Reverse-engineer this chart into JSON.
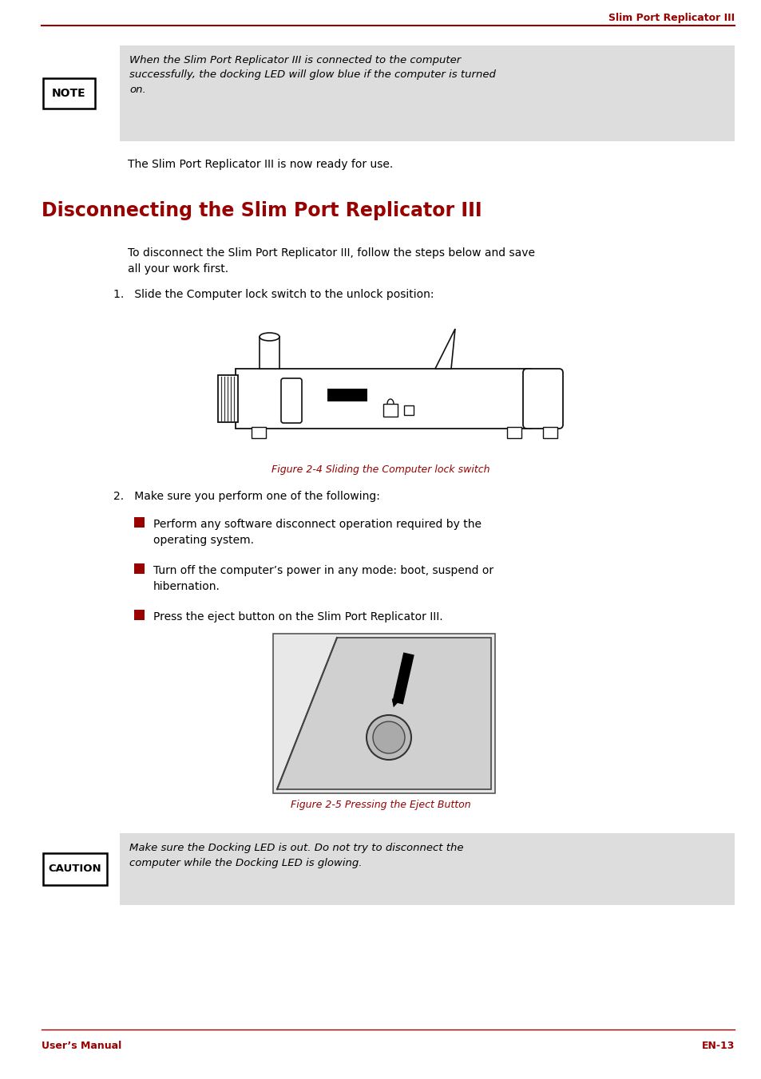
{
  "page_bg": "#ffffff",
  "header_text": "Slim Port Replicator III",
  "header_color": "#990000",
  "header_line_color": "#990000",
  "footer_left": "User’s Manual",
  "footer_right": "EN-13",
  "footer_color": "#990000",
  "footer_line_color": "#990000",
  "note_box_text": "NOTE",
  "note_bg": "#dddddd",
  "note_content": "When the Slim Port Replicator III is connected to the computer\nsuccessfully, the docking LED will glow blue if the computer is turned\non.",
  "plain_text_1": "The Slim Port Replicator III is now ready for use.",
  "section_title": "Disconnecting the Slim Port Replicator III",
  "section_title_color": "#990000",
  "intro_text": "To disconnect the Slim Port Replicator III, follow the steps below and save\nall your work first.",
  "step1_text": "1.   Slide the Computer lock switch to the unlock position:",
  "fig1_caption": "Figure 2-4 Sliding the Computer lock switch",
  "fig1_caption_color": "#990000",
  "step2_text": "2.   Make sure you perform one of the following:",
  "bullet1": "Perform any software disconnect operation required by the\noperating system.",
  "bullet2": "Turn off the computer’s power in any mode: boot, suspend or\nhibernation.",
  "bullet3": "Press the eject button on the Slim Port Replicator III.",
  "fig2_caption": "Figure 2-5 Pressing the Eject Button",
  "fig2_caption_color": "#990000",
  "caution_box_text": "CAUTION",
  "caution_bg": "#dddddd",
  "caution_content": "Make sure the Docking LED is out. Do not try to disconnect the\ncomputer while the Docking LED is glowing."
}
